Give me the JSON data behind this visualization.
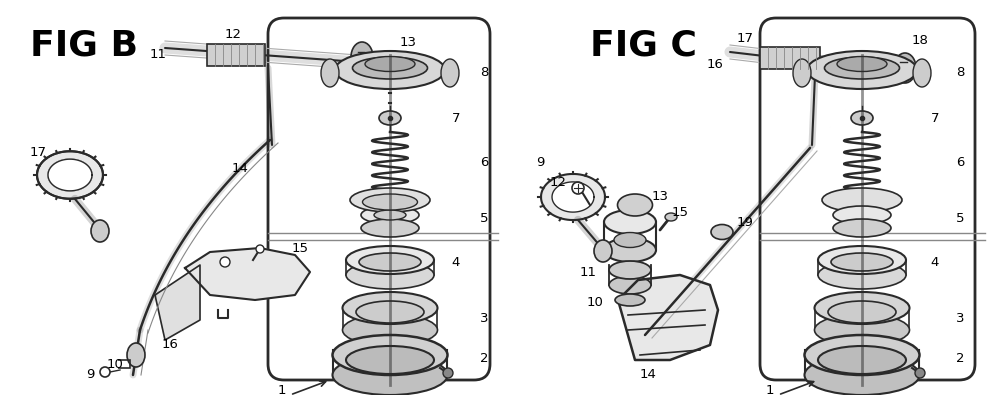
{
  "bg_color": "#ffffff",
  "fig_width": 10.0,
  "fig_height": 3.95,
  "dpi": 100,
  "title_left": "FIG B",
  "title_right": "FIG C",
  "title_fontsize": 26,
  "label_fontsize": 9.5,
  "line_color": "#2a2a2a",
  "fill_light": "#e8e8e8",
  "fill_mid": "#cccccc",
  "fill_dark": "#999999"
}
